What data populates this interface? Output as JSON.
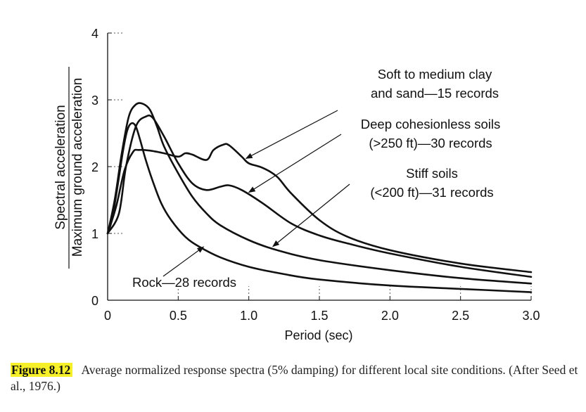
{
  "chart_data": {
    "type": "line",
    "xlabel": "Period (sec)",
    "ylabel": [
      "Spectral acceleration",
      "Maximum ground acceleration"
    ],
    "xlim": [
      0,
      3.0
    ],
    "ylim": [
      0,
      4
    ],
    "x_ticks": [
      "0",
      "0.5",
      "1.0",
      "1.5",
      "2.0",
      "2.5",
      "3.0"
    ],
    "y_ticks": [
      "0",
      "1",
      "2",
      "3",
      "4"
    ],
    "grid": false,
    "series": [
      {
        "name": "Rock—28 records",
        "x": [
          0,
          0.03,
          0.07,
          0.11,
          0.14,
          0.17,
          0.2,
          0.23,
          0.27,
          0.32,
          0.38,
          0.45,
          0.55,
          0.65,
          0.8,
          1.0,
          1.25,
          1.5,
          2.0,
          2.5,
          3.0
        ],
        "y": [
          1.0,
          1.2,
          1.7,
          2.25,
          2.55,
          2.65,
          2.6,
          2.4,
          2.1,
          1.78,
          1.45,
          1.2,
          0.95,
          0.8,
          0.64,
          0.5,
          0.39,
          0.31,
          0.22,
          0.17,
          0.12
        ]
      },
      {
        "name": "Stiff soils (<200 ft)—31 records",
        "x": [
          0,
          0.05,
          0.1,
          0.15,
          0.2,
          0.25,
          0.3,
          0.35,
          0.4,
          0.5,
          0.6,
          0.7,
          0.8,
          1.0,
          1.2,
          1.5,
          2.0,
          2.5,
          3.0
        ],
        "y": [
          1.0,
          1.5,
          2.2,
          2.75,
          2.93,
          2.94,
          2.85,
          2.6,
          2.3,
          1.9,
          1.55,
          1.3,
          1.12,
          0.9,
          0.75,
          0.6,
          0.45,
          0.33,
          0.25
        ]
      },
      {
        "name": "Deep cohesionless soils (>250 ft)—30 records",
        "x": [
          0,
          0.08,
          0.13,
          0.2,
          0.27,
          0.32,
          0.4,
          0.5,
          0.6,
          0.7,
          0.8,
          0.86,
          0.95,
          1.1,
          1.3,
          1.5,
          1.7,
          2.0,
          2.5,
          3.0
        ],
        "y": [
          1.0,
          1.3,
          2.0,
          2.6,
          2.75,
          2.73,
          2.45,
          2.05,
          1.75,
          1.65,
          1.7,
          1.72,
          1.65,
          1.45,
          1.15,
          0.97,
          0.85,
          0.7,
          0.5,
          0.35
        ]
      },
      {
        "name": "Soft to medium clay and sand—15 records",
        "x": [
          0,
          0.06,
          0.12,
          0.18,
          0.22,
          0.3,
          0.4,
          0.5,
          0.55,
          0.6,
          0.7,
          0.75,
          0.82,
          0.86,
          0.95,
          1.0,
          1.1,
          1.2,
          1.3,
          1.5,
          1.7,
          2.0,
          2.5,
          3.0
        ],
        "y": [
          1.0,
          1.4,
          1.95,
          2.22,
          2.25,
          2.24,
          2.2,
          2.15,
          2.2,
          2.18,
          2.1,
          2.25,
          2.33,
          2.32,
          2.15,
          2.05,
          1.98,
          1.85,
          1.6,
          1.2,
          0.95,
          0.75,
          0.55,
          0.42
        ]
      }
    ],
    "annotations": [
      {
        "lines": [
          "Soft to medium clay",
          "and sand—15 records"
        ],
        "points_to_series": 3
      },
      {
        "lines": [
          "Deep cohesionless soils",
          "(>250 ft)—30 records"
        ],
        "points_to_series": 2
      },
      {
        "lines": [
          "Stiff soils",
          "(<200 ft)—31 records"
        ],
        "points_to_series": 1
      },
      {
        "lines": [
          "Rock—28 records"
        ],
        "points_to_series": 0
      }
    ]
  },
  "caption": {
    "label": "Figure 8.12",
    "text": "Average normalized response spectra (5% damping) for different local site conditions. (After Seed et al., 1976.)"
  }
}
